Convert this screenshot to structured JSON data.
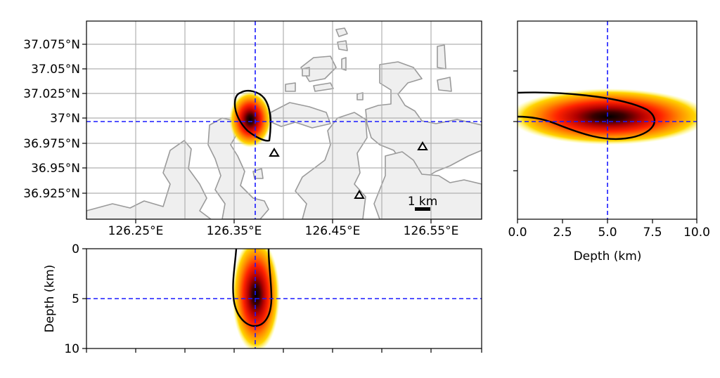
{
  "map_panel": {
    "lon_ticks": [
      "126.25°E",
      "126.35°E",
      "126.45°E",
      "126.55°E"
    ],
    "lat_ticks": [
      "37.075°N",
      "37.05°N",
      "37.025°N",
      "37°N",
      "36.975°N",
      "36.95°N",
      "36.925°N"
    ],
    "scale_bar_label": "1 km",
    "station_count": 3
  },
  "depth_profile": {
    "xlabel": "Depth (km)",
    "x_ticks": [
      "0.0",
      "2.5",
      "5.0",
      "7.5",
      "10.0"
    ]
  },
  "cross_section": {
    "ylabel": "Depth (km)",
    "y_ticks": [
      "0",
      "5",
      "10"
    ]
  },
  "colors": {
    "land": "#efefef",
    "coast": "#9a9a9a",
    "grid": "#b0b0b0",
    "crosshair": "#1a1aff",
    "contour": "#000000"
  }
}
